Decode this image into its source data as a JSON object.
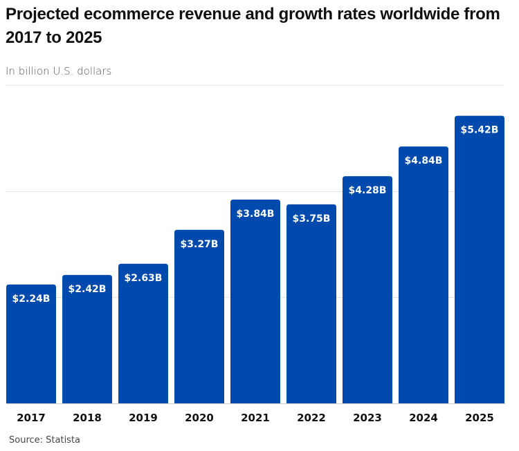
{
  "chart_data": {
    "type": "bar",
    "title": "Projected ecommerce revenue and growth rates worldwide from 2017 to 2025",
    "subtitle": "In billion U.S. dollars",
    "xlabel": "",
    "ylabel": "",
    "categories": [
      "2017",
      "2018",
      "2019",
      "2020",
      "2021",
      "2022",
      "2023",
      "2024",
      "2025"
    ],
    "values": [
      2.24,
      2.42,
      2.63,
      3.27,
      3.84,
      3.75,
      4.28,
      4.84,
      5.42
    ],
    "data_labels": [
      "$2.24B",
      "$2.42B",
      "$2.63B",
      "$3.27B",
      "$3.84B",
      "$3.75B",
      "$4.28B",
      "$4.84B",
      "$5.42B"
    ],
    "ylim": [
      0,
      6
    ],
    "gridlines": [
      2,
      4,
      6
    ],
    "grid": true,
    "bar_color": "#004aad",
    "source": "Source: Statista"
  }
}
